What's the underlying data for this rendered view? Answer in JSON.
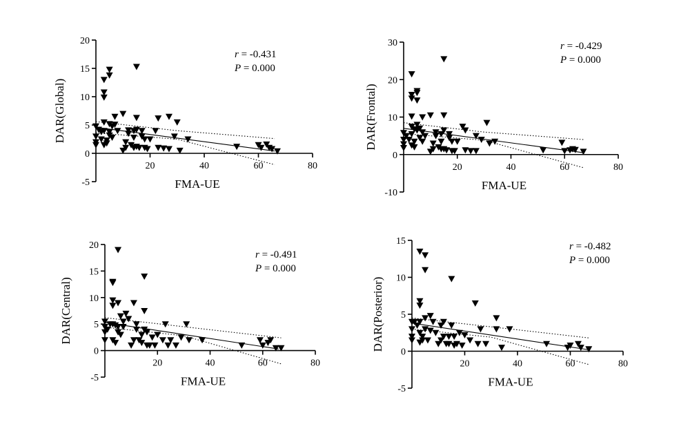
{
  "chart_data": [
    {
      "type": "scatter",
      "xlabel": "FMA-UE",
      "ylabel": "DAR(Global)",
      "xlim": [
        0,
        80
      ],
      "ylim": [
        -5,
        20
      ],
      "xticks": [
        20,
        40,
        60,
        80
      ],
      "yticks": [
        -5,
        0,
        5,
        10,
        15,
        20
      ],
      "stats": {
        "r_label": "r",
        "r_value": " = -0.431",
        "p_label": "P",
        "p_value": " = 0.000"
      },
      "fit": {
        "x": [
          0,
          66
        ],
        "y": [
          4.6,
          0.4
        ]
      },
      "ci_upper": {
        "x": [
          0,
          30,
          66
        ],
        "y": [
          5.6,
          4.0,
          2.6
        ]
      },
      "ci_lower": {
        "x": [
          0,
          30,
          66
        ],
        "y": [
          3.6,
          2.5,
          -2.0
        ]
      },
      "points": [
        [
          0,
          4.8
        ],
        [
          0,
          3.0
        ],
        [
          0,
          2.0
        ],
        [
          0,
          1.5
        ],
        [
          1,
          4.2
        ],
        [
          2,
          3.8
        ],
        [
          2,
          2.5
        ],
        [
          3,
          13.0
        ],
        [
          3,
          10.8
        ],
        [
          3,
          9.9
        ],
        [
          3,
          5.5
        ],
        [
          3,
          4.0
        ],
        [
          3,
          1.5
        ],
        [
          4,
          2.3
        ],
        [
          4,
          1.8
        ],
        [
          5,
          14.8
        ],
        [
          5,
          13.8
        ],
        [
          5,
          5.2
        ],
        [
          5,
          3.8
        ],
        [
          5,
          3.2
        ],
        [
          6,
          4.8
        ],
        [
          6,
          2.8
        ],
        [
          7,
          6.5
        ],
        [
          7,
          5.1
        ],
        [
          8,
          4.0
        ],
        [
          10,
          7.0
        ],
        [
          10,
          0.5
        ],
        [
          11,
          2.0
        ],
        [
          11,
          1.0
        ],
        [
          12,
          4.1
        ],
        [
          12,
          3.5
        ],
        [
          13,
          1.5
        ],
        [
          14,
          4.0
        ],
        [
          14,
          2.8
        ],
        [
          14,
          1.0
        ],
        [
          15,
          6.3
        ],
        [
          15,
          4.2
        ],
        [
          15,
          1.2
        ],
        [
          15,
          15.3
        ],
        [
          16,
          1.0
        ],
        [
          17,
          3.0
        ],
        [
          17,
          4.0
        ],
        [
          18,
          1.0
        ],
        [
          18,
          2.5
        ],
        [
          19,
          0.8
        ],
        [
          20,
          2.5
        ],
        [
          22,
          4.0
        ],
        [
          23,
          6.2
        ],
        [
          23,
          1.0
        ],
        [
          25,
          0.9
        ],
        [
          27,
          0.8
        ],
        [
          27,
          6.5
        ],
        [
          29,
          3.0
        ],
        [
          30,
          5.5
        ],
        [
          31,
          0.5
        ],
        [
          34,
          2.5
        ],
        [
          52,
          1.2
        ],
        [
          60,
          1.5
        ],
        [
          61,
          1.0
        ],
        [
          63,
          1.6
        ],
        [
          64,
          1.0
        ],
        [
          65,
          0.8
        ],
        [
          67,
          0.4
        ]
      ]
    },
    {
      "type": "scatter",
      "xlabel": "FMA-UE",
      "ylabel": "DAR(Frontal)",
      "xlim": [
        0,
        80
      ],
      "ylim": [
        -10,
        30
      ],
      "xticks": [
        20,
        40,
        60,
        80
      ],
      "yticks": [
        -10,
        0,
        10,
        20,
        30
      ],
      "stats": {
        "r_label": "r",
        "r_value": " = -0.429",
        "p_label": "P",
        "p_value": " = 0.000"
      },
      "fit": {
        "x": [
          0,
          67
        ],
        "y": [
          7.0,
          0.5
        ]
      },
      "ci_upper": {
        "x": [
          0,
          30,
          67
        ],
        "y": [
          8.5,
          6.0,
          4.0
        ]
      },
      "ci_lower": {
        "x": [
          0,
          30,
          67
        ],
        "y": [
          5.6,
          3.8,
          -3.5
        ]
      },
      "points": [
        [
          0,
          5.8
        ],
        [
          0,
          4.0
        ],
        [
          0,
          2.8
        ],
        [
          0,
          1.8
        ],
        [
          1,
          5.0
        ],
        [
          2,
          4.0
        ],
        [
          3,
          21.5
        ],
        [
          3,
          16.0
        ],
        [
          3,
          15.0
        ],
        [
          3,
          10.2
        ],
        [
          3,
          7.5
        ],
        [
          3,
          5.5
        ],
        [
          3,
          2.5
        ],
        [
          4,
          6.8
        ],
        [
          4,
          3.5
        ],
        [
          4,
          2.0
        ],
        [
          5,
          17.0
        ],
        [
          5,
          16.5
        ],
        [
          5,
          14.5
        ],
        [
          5,
          8.0
        ],
        [
          5,
          6.5
        ],
        [
          6,
          7.0
        ],
        [
          6,
          4.5
        ],
        [
          7,
          6.0
        ],
        [
          7,
          10.0
        ],
        [
          7,
          3.5
        ],
        [
          8,
          5.0
        ],
        [
          10,
          10.5
        ],
        [
          10,
          0.8
        ],
        [
          11,
          3.0
        ],
        [
          11,
          1.5
        ],
        [
          12,
          6.0
        ],
        [
          12,
          5.0
        ],
        [
          13,
          2.0
        ],
        [
          14,
          5.5
        ],
        [
          14,
          3.5
        ],
        [
          14,
          1.5
        ],
        [
          15,
          10.5
        ],
        [
          15,
          6.5
        ],
        [
          15,
          1.5
        ],
        [
          15,
          25.5
        ],
        [
          16,
          1.2
        ],
        [
          17,
          4.5
        ],
        [
          17,
          5.5
        ],
        [
          18,
          1.0
        ],
        [
          18,
          3.5
        ],
        [
          19,
          1.0
        ],
        [
          20,
          3.5
        ],
        [
          22,
          7.5
        ],
        [
          23,
          6.5
        ],
        [
          23,
          1.2
        ],
        [
          25,
          1.0
        ],
        [
          27,
          1.0
        ],
        [
          27,
          5.0
        ],
        [
          29,
          4.0
        ],
        [
          31,
          8.5
        ],
        [
          32,
          3.0
        ],
        [
          34,
          3.5
        ],
        [
          52,
          1.2
        ],
        [
          59,
          3.2
        ],
        [
          60,
          1.0
        ],
        [
          62,
          1.2
        ],
        [
          63,
          1.5
        ],
        [
          64,
          1.3
        ],
        [
          67,
          0.8
        ]
      ]
    },
    {
      "type": "scatter",
      "xlabel": "FMA-UE",
      "ylabel": "DAR(Central)",
      "xlim": [
        0,
        80
      ],
      "ylim": [
        -5,
        20
      ],
      "xticks": [
        20,
        40,
        60,
        80
      ],
      "yticks": [
        -5,
        0,
        5,
        10,
        15,
        20
      ],
      "stats": {
        "r_label": "r",
        "r_value": " = -0.491",
        "p_label": "P",
        "p_value": " = 0.000"
      },
      "fit": {
        "x": [
          0,
          66
        ],
        "y": [
          5.3,
          0.3
        ]
      },
      "ci_upper": {
        "x": [
          0,
          30,
          67
        ],
        "y": [
          6.2,
          4.5,
          2.4
        ]
      },
      "ci_lower": {
        "x": [
          0,
          30,
          67
        ],
        "y": [
          4.4,
          2.8,
          -2.5
        ]
      },
      "points": [
        [
          0,
          5.5
        ],
        [
          0,
          4.5
        ],
        [
          0,
          3.5
        ],
        [
          0,
          2.0
        ],
        [
          1,
          4.0
        ],
        [
          2,
          5.0
        ],
        [
          3,
          13.0
        ],
        [
          3,
          12.8
        ],
        [
          3,
          9.5
        ],
        [
          3,
          8.5
        ],
        [
          3,
          5.0
        ],
        [
          3,
          2.0
        ],
        [
          4,
          4.8
        ],
        [
          4,
          1.5
        ],
        [
          5,
          19.0
        ],
        [
          5,
          9.0
        ],
        [
          5,
          4.5
        ],
        [
          5,
          3.5
        ],
        [
          6,
          6.5
        ],
        [
          6,
          3.0
        ],
        [
          7,
          5.5
        ],
        [
          7,
          4.5
        ],
        [
          8,
          7.0
        ],
        [
          9,
          6.0
        ],
        [
          10,
          1.0
        ],
        [
          11,
          9.0
        ],
        [
          11,
          2.0
        ],
        [
          12,
          5.0
        ],
        [
          12,
          4.0
        ],
        [
          13,
          2.0
        ],
        [
          14,
          3.0
        ],
        [
          14,
          1.5
        ],
        [
          15,
          14.0
        ],
        [
          15,
          7.5
        ],
        [
          15,
          4.0
        ],
        [
          16,
          1.0
        ],
        [
          16,
          3.5
        ],
        [
          17,
          1.0
        ],
        [
          18,
          2.5
        ],
        [
          19,
          1.0
        ],
        [
          20,
          3.0
        ],
        [
          22,
          2.0
        ],
        [
          23,
          5.0
        ],
        [
          24,
          1.0
        ],
        [
          25,
          2.0
        ],
        [
          27,
          1.0
        ],
        [
          29,
          2.5
        ],
        [
          31,
          5.0
        ],
        [
          32,
          2.0
        ],
        [
          37,
          2.0
        ],
        [
          52,
          1.0
        ],
        [
          59,
          2.0
        ],
        [
          60,
          1.0
        ],
        [
          62,
          1.5
        ],
        [
          63,
          2.0
        ],
        [
          65,
          0.5
        ],
        [
          67,
          0.5
        ]
      ]
    },
    {
      "type": "scatter",
      "xlabel": "FMA-UE",
      "ylabel": "DAR(Posterior)",
      "xlim": [
        0,
        80
      ],
      "ylim": [
        -5,
        15
      ],
      "xticks": [
        20,
        40,
        60,
        80
      ],
      "yticks": [
        -5,
        0,
        5,
        10,
        15
      ],
      "stats": {
        "r_label": "r",
        "r_value": " = -0.482",
        "p_label": "P",
        "p_value": " = 0.000"
      },
      "fit": {
        "x": [
          0,
          67
        ],
        "y": [
          3.8,
          0.2
        ]
      },
      "ci_upper": {
        "x": [
          0,
          30,
          67
        ],
        "y": [
          4.5,
          3.3,
          1.8
        ]
      },
      "ci_lower": {
        "x": [
          0,
          30,
          67
        ],
        "y": [
          3.0,
          1.9,
          -1.8
        ]
      },
      "points": [
        [
          0,
          4.0
        ],
        [
          0,
          3.0
        ],
        [
          0,
          2.0
        ],
        [
          0,
          1.5
        ],
        [
          1,
          4.0
        ],
        [
          2,
          3.5
        ],
        [
          3,
          13.5
        ],
        [
          3,
          6.8
        ],
        [
          3,
          6.2
        ],
        [
          3,
          4.0
        ],
        [
          3,
          2.5
        ],
        [
          3,
          1.2
        ],
        [
          4,
          2.0
        ],
        [
          4,
          1.5
        ],
        [
          5,
          13.0
        ],
        [
          5,
          11.0
        ],
        [
          5,
          4.5
        ],
        [
          5,
          3.0
        ],
        [
          6,
          1.5
        ],
        [
          7,
          4.8
        ],
        [
          7,
          2.8
        ],
        [
          8,
          4.0
        ],
        [
          9,
          2.5
        ],
        [
          10,
          1.0
        ],
        [
          11,
          3.5
        ],
        [
          11,
          1.5
        ],
        [
          12,
          4.0
        ],
        [
          12,
          2.0
        ],
        [
          13,
          1.0
        ],
        [
          14,
          2.0
        ],
        [
          14,
          1.0
        ],
        [
          15,
          9.8
        ],
        [
          15,
          3.5
        ],
        [
          16,
          2.0
        ],
        [
          16,
          0.8
        ],
        [
          17,
          1.0
        ],
        [
          18,
          2.5
        ],
        [
          19,
          0.8
        ],
        [
          20,
          2.2
        ],
        [
          22,
          1.5
        ],
        [
          24,
          6.5
        ],
        [
          25,
          1.0
        ],
        [
          26,
          3.0
        ],
        [
          28,
          1.0
        ],
        [
          32,
          4.5
        ],
        [
          32,
          3.0
        ],
        [
          34,
          0.5
        ],
        [
          37,
          3.0
        ],
        [
          51,
          1.0
        ],
        [
          59,
          0.5
        ],
        [
          60,
          0.8
        ],
        [
          63,
          1.0
        ],
        [
          64,
          0.5
        ],
        [
          67,
          0.3
        ]
      ]
    }
  ]
}
